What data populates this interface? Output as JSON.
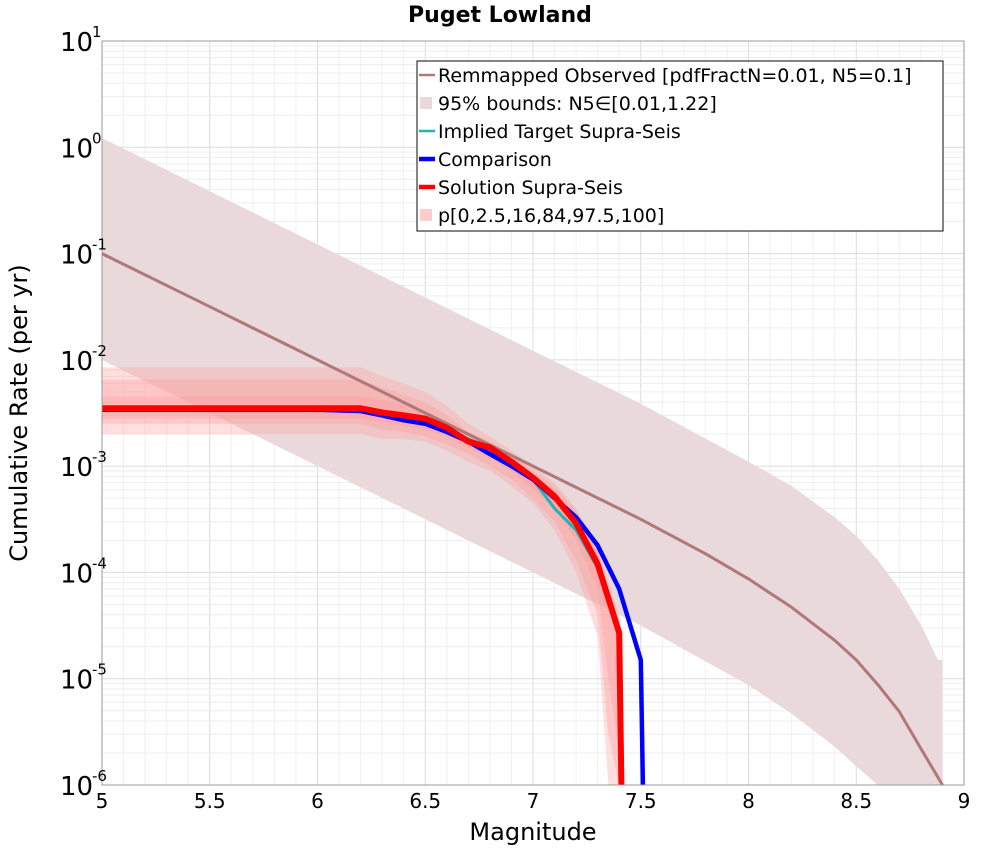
{
  "chart_data": {
    "type": "line",
    "title": "Puget Lowland",
    "xlabel": "Magnitude",
    "ylabel": "Cumulative Rate (per yr)",
    "xlim": [
      5,
      9
    ],
    "ylim": [
      1e-06,
      10
    ],
    "yscale": "log",
    "grid": true,
    "legend_position": "top-right",
    "x_ticks": [
      "5",
      "5.5",
      "6",
      "6.5",
      "7",
      "7.5",
      "8",
      "8.5",
      "9"
    ],
    "y_ticks": [
      {
        "base": "10",
        "exp": "1",
        "value": 10
      },
      {
        "base": "10",
        "exp": "0",
        "value": 1
      },
      {
        "base": "10",
        "exp": "-1",
        "value": 0.1
      },
      {
        "base": "10",
        "exp": "-2",
        "value": 0.01
      },
      {
        "base": "10",
        "exp": "-3",
        "value": 0.001
      },
      {
        "base": "10",
        "exp": "-4",
        "value": 0.0001
      },
      {
        "base": "10",
        "exp": "-5",
        "value": 1e-05
      },
      {
        "base": "10",
        "exp": "-6",
        "value": 1e-06
      }
    ],
    "legend": [
      {
        "label": "Remmapped Observed [pdfFractN=0.01, N5=0.1]",
        "color": "#b07878",
        "kind": "line"
      },
      {
        "label": "95% bounds: N5∈[0.01,1.22]",
        "color": "#ead9db",
        "kind": "box"
      },
      {
        "label": "Implied Target Supra-Seis",
        "color": "#22b5b5",
        "kind": "line"
      },
      {
        "label": "Comparison",
        "color": "#0000ff",
        "kind": "thick"
      },
      {
        "label": "Solution Supra-Seis",
        "color": "#ff0000",
        "kind": "thick"
      },
      {
        "label": "p[0,2.5,16,84,97.5,100]",
        "color": "#ffcccc",
        "kind": "box"
      }
    ],
    "series": [
      {
        "name": "Remmapped Observed [pdfFractN=0.01, N5=0.1]",
        "color": "#b07878",
        "x": [
          5.0,
          5.5,
          6.0,
          6.5,
          7.0,
          7.5,
          7.8,
          8.0,
          8.2,
          8.4,
          8.5,
          8.6,
          8.7,
          8.8,
          8.9,
          8.9
        ],
        "y": [
          0.1,
          0.0316,
          0.01,
          0.00316,
          0.001,
          0.000316,
          0.00015,
          8.7e-05,
          4.7e-05,
          2.3e-05,
          1.5e-05,
          8.8e-06,
          4.9e-06,
          2.2e-06,
          9e-07,
          1e-06
        ]
      },
      {
        "name": "Implied Target Supra-Seis",
        "color": "#22b5b5",
        "x": [
          5.0,
          6.2,
          6.5,
          6.7,
          6.8,
          6.9,
          7.0,
          7.1,
          7.2,
          7.3,
          7.4,
          7.41
        ],
        "y": [
          0.0035,
          0.0035,
          0.0028,
          0.0018,
          0.0015,
          0.0011,
          0.00075,
          0.0004,
          0.00025,
          0.00011,
          2.5e-05,
          1e-06
        ]
      },
      {
        "name": "Comparison",
        "color": "#0000ff",
        "x": [
          5.0,
          6.0,
          6.2,
          6.3,
          6.4,
          6.5,
          6.6,
          6.7,
          6.8,
          6.9,
          7.0,
          7.1,
          7.2,
          7.3,
          7.4,
          7.5,
          7.51
        ],
        "y": [
          0.0034,
          0.0034,
          0.0033,
          0.003,
          0.0027,
          0.0025,
          0.0021,
          0.0017,
          0.0013,
          0.001,
          0.00075,
          0.0005,
          0.00033,
          0.00018,
          7e-05,
          1.5e-05,
          1e-06
        ]
      },
      {
        "name": "Solution Supra-Seis",
        "color": "#ff0000",
        "x": [
          5.0,
          6.2,
          6.3,
          6.4,
          6.5,
          6.6,
          6.7,
          6.8,
          6.9,
          7.0,
          7.1,
          7.2,
          7.3,
          7.4,
          7.41
        ],
        "y": [
          0.0035,
          0.0035,
          0.0032,
          0.003,
          0.0028,
          0.0023,
          0.0017,
          0.0015,
          0.0011,
          0.00078,
          0.00052,
          0.00029,
          0.00012,
          2.7e-05,
          1e-06
        ]
      }
    ],
    "bands": [
      {
        "name": "95% bounds: N5∈[0.01,1.22]",
        "color": "#ead9db",
        "x": [
          5.0,
          5.5,
          6.0,
          6.5,
          7.0,
          7.5,
          8.0,
          8.2,
          8.4,
          8.5,
          8.6,
          8.7,
          8.8,
          8.88,
          8.9
        ],
        "upper": [
          1.22,
          0.386,
          0.122,
          0.0386,
          0.0122,
          0.00386,
          0.0011,
          0.00065,
          0.00033,
          0.00022,
          0.00013,
          7e-05,
          3.2e-05,
          1.5e-05,
          1.5e-05
        ],
        "lower": [
          0.01,
          0.00316,
          0.001,
          0.000316,
          0.0001,
          3.16e-05,
          8.7e-06,
          4.7e-06,
          2.3e-06,
          1.5e-06,
          8.8e-07,
          4.9e-07,
          2.2e-07,
          1e-07,
          1e-07
        ]
      },
      {
        "name": "p[0,2.5,16,84,97.5,100]",
        "color": "#ff9999",
        "opacity": 0.32,
        "x": [
          5.0,
          6.2,
          6.3,
          6.4,
          6.5,
          6.6,
          6.7,
          6.8,
          6.9,
          7.0,
          7.1,
          7.2,
          7.3,
          7.35,
          7.4
        ],
        "upper": [
          0.0085,
          0.0085,
          0.007,
          0.006,
          0.005,
          0.0037,
          0.0025,
          0.0019,
          0.0014,
          0.001,
          0.0007,
          0.0004,
          0.00018,
          8e-05,
          4e-05
        ],
        "lower": [
          0.002,
          0.002,
          0.0018,
          0.0018,
          0.0017,
          0.0014,
          0.0011,
          0.0009,
          0.00065,
          0.00045,
          0.00025,
          0.0001,
          2.5e-05,
          1e-06,
          1e-06
        ]
      },
      {
        "name": "p[0,2.5,16,84,97.5,100]",
        "color": "#ff9999",
        "opacity": 0.32,
        "x": [
          5.0,
          6.2,
          6.3,
          6.4,
          6.5,
          6.6,
          6.7,
          6.8,
          6.9,
          7.0,
          7.1,
          7.2,
          7.3,
          7.35,
          7.4
        ],
        "upper": [
          0.0065,
          0.0065,
          0.0055,
          0.0047,
          0.004,
          0.003,
          0.0021,
          0.0017,
          0.0013,
          0.0009,
          0.00065,
          0.00038,
          0.00016,
          6e-05,
          3.5e-05
        ],
        "lower": [
          0.0025,
          0.0025,
          0.0022,
          0.0021,
          0.0019,
          0.0016,
          0.0013,
          0.001,
          0.00075,
          0.0005,
          0.0003,
          0.00013,
          4e-05,
          3e-06,
          1e-06
        ]
      },
      {
        "name": "p[0,2.5,16,84,97.5,100]",
        "color": "#ff9999",
        "opacity": 0.32,
        "x": [
          5.0,
          6.2,
          6.3,
          6.4,
          6.5,
          6.6,
          6.7,
          6.8,
          6.9,
          7.0,
          7.1,
          7.2,
          7.3,
          7.35,
          7.4
        ],
        "upper": [
          0.0045,
          0.0045,
          0.0042,
          0.0038,
          0.0033,
          0.0026,
          0.0019,
          0.0016,
          0.0012,
          0.00085,
          0.0006,
          0.00034,
          0.00014,
          5e-05,
          3e-05
        ],
        "lower": [
          0.0028,
          0.0028,
          0.0026,
          0.0024,
          0.0022,
          0.0019,
          0.0015,
          0.0012,
          0.0009,
          0.0006,
          0.0004,
          0.0002,
          7e-05,
          1e-05,
          2e-06
        ]
      }
    ]
  }
}
